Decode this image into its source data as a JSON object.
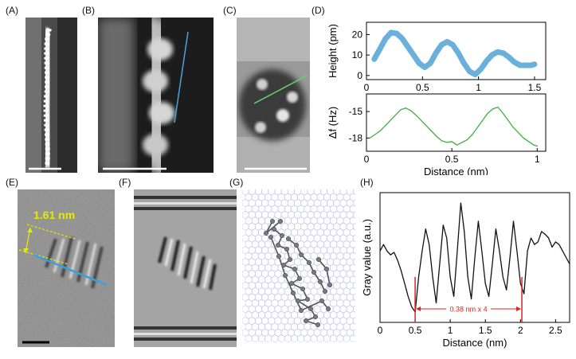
{
  "panels": {
    "A": "(A)",
    "B": "(B)",
    "C": "(C)",
    "D": "(D)",
    "E": "(E)",
    "F": "(F)",
    "G": "(G)",
    "H": "(H)"
  },
  "panel_e": {
    "annotation": "1.61 nm"
  },
  "chart_data": [
    {
      "id": "D-top",
      "type": "line",
      "ylabel": "Height (pm)",
      "xlim": [
        0,
        1.6
      ],
      "ylim": [
        -2,
        26
      ],
      "xticks": [
        "0",
        "0.5",
        "1",
        "1.5"
      ],
      "yticks": [
        "0",
        "10",
        "20"
      ],
      "x": [
        0.07,
        0.12,
        0.17,
        0.22,
        0.27,
        0.32,
        0.37,
        0.42,
        0.47,
        0.52,
        0.57,
        0.62,
        0.67,
        0.72,
        0.77,
        0.82,
        0.87,
        0.92,
        0.97,
        1.02,
        1.07,
        1.12,
        1.17,
        1.22,
        1.27,
        1.32,
        1.37,
        1.42,
        1.47,
        1.5
      ],
      "y": [
        8,
        13,
        18,
        21,
        20.5,
        18,
        14,
        10,
        6,
        4,
        6,
        11,
        15,
        16.5,
        15,
        11,
        6,
        2,
        0.5,
        3,
        7,
        10,
        11.5,
        11,
        9,
        6.5,
        5,
        5,
        5,
        5.5
      ]
    },
    {
      "id": "D-bottom",
      "type": "line",
      "xlabel": "Distance (nm)",
      "ylabel": "Δf (Hz)",
      "xlim": [
        0,
        1.05
      ],
      "ylim": [
        -19.5,
        -13
      ],
      "xticks": [
        "0",
        "0.5",
        "1"
      ],
      "yticks": [
        "-15",
        "-18"
      ],
      "x": [
        0.02,
        0.05,
        0.08,
        0.11,
        0.14,
        0.17,
        0.2,
        0.23,
        0.26,
        0.29,
        0.32,
        0.35,
        0.38,
        0.41,
        0.44,
        0.47,
        0.5,
        0.53,
        0.56,
        0.59,
        0.62,
        0.65,
        0.68,
        0.71,
        0.74,
        0.77,
        0.8,
        0.83,
        0.86,
        0.89,
        0.92,
        0.95,
        0.98,
        1.0
      ],
      "y": [
        -18,
        -17.6,
        -17.2,
        -16.6,
        -16,
        -15.4,
        -14.8,
        -14.6,
        -14.9,
        -15.4,
        -16,
        -16.6,
        -17.2,
        -17.8,
        -18.3,
        -18.5,
        -18.4,
        -18.8,
        -18.5,
        -18.2,
        -17.6,
        -16.8,
        -16,
        -15.2,
        -14.7,
        -14.5,
        -15.2,
        -16,
        -16.8,
        -17.4,
        -18,
        -18.4,
        -18.8,
        -18.9
      ]
    },
    {
      "id": "H",
      "type": "line",
      "xlabel": "Distance (nm)",
      "ylabel": "Gray value (a.u.)",
      "xlim": [
        0,
        2.7
      ],
      "ylim": [
        0,
        1
      ],
      "xticks": [
        "0",
        "0.5",
        "1",
        "1.5",
        "2",
        "2.5"
      ],
      "annotation": "0.38 nm x 4",
      "markers_x": [
        0.5,
        2.02
      ],
      "x": [
        0,
        0.05,
        0.1,
        0.15,
        0.2,
        0.25,
        0.3,
        0.35,
        0.4,
        0.45,
        0.5,
        0.55,
        0.6,
        0.65,
        0.7,
        0.75,
        0.8,
        0.85,
        0.9,
        0.95,
        1.0,
        1.05,
        1.1,
        1.15,
        1.2,
        1.25,
        1.3,
        1.35,
        1.4,
        1.45,
        1.5,
        1.55,
        1.6,
        1.65,
        1.7,
        1.75,
        1.8,
        1.85,
        1.9,
        1.95,
        2.0,
        2.05,
        2.1,
        2.15,
        2.2,
        2.25,
        2.3,
        2.35,
        2.4,
        2.45,
        2.5,
        2.55,
        2.6,
        2.65,
        2.7
      ],
      "y": [
        0.55,
        0.6,
        0.55,
        0.52,
        0.54,
        0.48,
        0.4,
        0.3,
        0.2,
        0.12,
        0.08,
        0.35,
        0.55,
        0.72,
        0.6,
        0.35,
        0.15,
        0.45,
        0.75,
        0.65,
        0.35,
        0.2,
        0.55,
        0.92,
        0.7,
        0.35,
        0.18,
        0.5,
        0.78,
        0.55,
        0.3,
        0.2,
        0.45,
        0.72,
        0.55,
        0.35,
        0.25,
        0.5,
        0.78,
        0.55,
        0.3,
        0.22,
        0.55,
        0.65,
        0.6,
        0.62,
        0.7,
        0.68,
        0.65,
        0.58,
        0.62,
        0.6,
        0.55,
        0.5,
        0.45
      ]
    }
  ]
}
